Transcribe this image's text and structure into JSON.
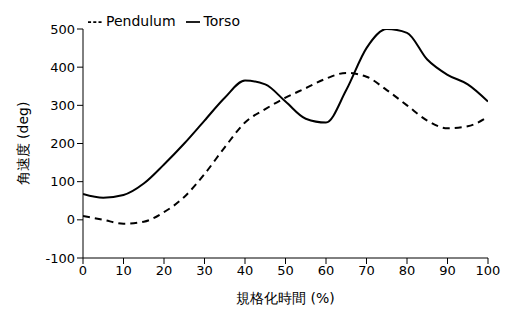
{
  "chart_data": {
    "type": "line",
    "x_label": "規格化時間 (%)",
    "y_label": "角速度 (deg)",
    "x": [
      0,
      5,
      10,
      15,
      20,
      25,
      30,
      35,
      40,
      45,
      50,
      55,
      60,
      65,
      70,
      75,
      80,
      85,
      90,
      95,
      100
    ],
    "series": [
      {
        "name": "Torso",
        "color": "#000000",
        "line_style": "solid",
        "values": [
          68,
          58,
          65,
          95,
          145,
          200,
          260,
          320,
          365,
          355,
          310,
          265,
          255,
          340,
          450,
          500,
          490,
          420,
          380,
          355,
          310
        ]
      },
      {
        "name": "Pendulum",
        "color": "#000000",
        "line_style": "dashed",
        "values": [
          10,
          0,
          -10,
          -5,
          20,
          60,
          120,
          190,
          255,
          290,
          320,
          345,
          370,
          385,
          375,
          340,
          300,
          260,
          240,
          245,
          270
        ]
      }
    ],
    "xlim": [
      0,
      100
    ],
    "xticks": [
      0,
      10,
      20,
      30,
      40,
      50,
      60,
      70,
      80,
      90,
      100
    ],
    "ylim": [
      -100,
      500
    ],
    "yticks": [
      -100,
      0,
      100,
      200,
      300,
      400,
      500
    ],
    "grid": false,
    "legend": "top"
  }
}
